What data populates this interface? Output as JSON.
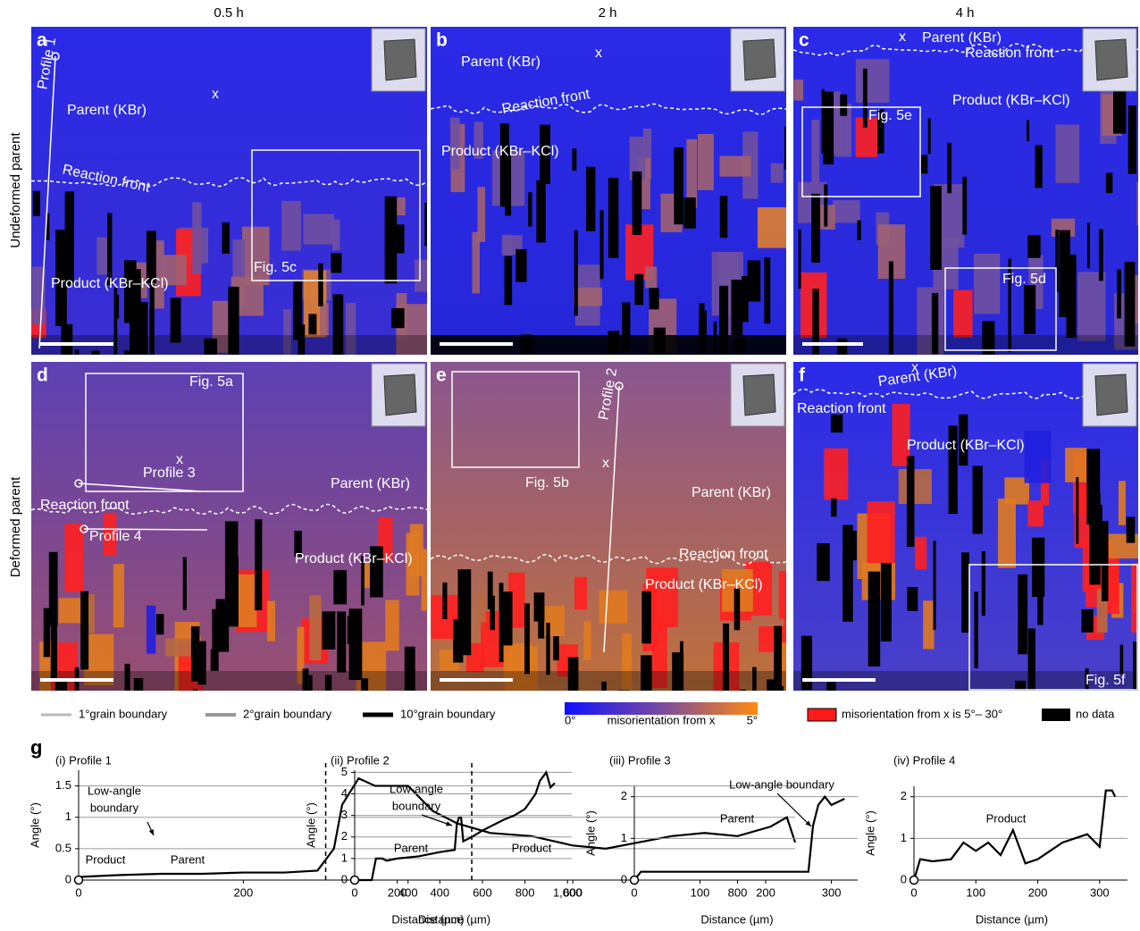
{
  "column_headers": [
    "0.5 h",
    "2 h",
    "4 h"
  ],
  "row_headers": [
    "Undeformed parent",
    "Deformed parent"
  ],
  "panels": [
    {
      "letter": "a",
      "labels": [
        "Profile 1",
        "Parent (KBr)",
        "x",
        "Reaction front",
        "Product (KBr–KCl)",
        "Fig. 5c"
      ]
    },
    {
      "letter": "b",
      "labels": [
        "Parent (KBr)",
        "x",
        "Reaction front",
        "Product (KBr–KCl)"
      ]
    },
    {
      "letter": "c",
      "labels": [
        "x",
        "Parent (KBr)",
        "Reaction front",
        "Product (KBr–KCl)",
        "Fig. 5e",
        "Fig. 5d"
      ]
    },
    {
      "letter": "d",
      "labels": [
        "Fig. 5a",
        "x",
        "Profile 3",
        "Reaction front",
        "Profile 4",
        "Parent (KBr)",
        "Product (KBr–KCl)"
      ]
    },
    {
      "letter": "e",
      "labels": [
        "Profile 2",
        "x",
        "Fig. 5b",
        "Parent (KBr)",
        "Reaction front",
        "Product (KBr–KCl)"
      ]
    },
    {
      "letter": "f",
      "labels": [
        "x",
        "Parent (KBr)",
        "Reaction front",
        "Product (KBr–KCl)",
        "Fig. 5f"
      ]
    }
  ],
  "legend": {
    "boundaries": [
      "1°grain boundary",
      "2°grain boundary",
      "10°grain boundary"
    ],
    "colorbar_min": "0°",
    "colorbar_label": "misorientation from x",
    "colorbar_max": "5°",
    "red_label": "misorientation from x is 5°– 30°",
    "black_label": "no data"
  },
  "section_letter": "g",
  "chart_data": [
    {
      "type": "line",
      "title": "(i) Profile 1",
      "x_label": "Distance (µm)",
      "y_label": "Angle (°)",
      "color": "#000000",
      "grid": true,
      "x": [
        0,
        50,
        100,
        150,
        200,
        250,
        290,
        310,
        320,
        340,
        360,
        400,
        430,
        460,
        500,
        550,
        600,
        640,
        680,
        720,
        760,
        800,
        840,
        860,
        870
      ],
      "values": [
        0.05,
        0.08,
        0.1,
        0.1,
        0.12,
        0.12,
        0.15,
        0.5,
        1.2,
        1.62,
        1.5,
        1.5,
        1.1,
        0.9,
        0.75,
        0.7,
        0.55,
        0.5,
        0.6,
        0.7,
        0.75,
        0.7,
        0.85,
        1.0,
        0.6
      ],
      "xlim": [
        0,
        870
      ],
      "ylim": [
        0,
        1.75
      ],
      "xticks": [
        0,
        200,
        400,
        600,
        800
      ],
      "yticks": [
        0,
        0.5,
        1,
        1.5
      ],
      "divider_x": 300,
      "annotations": [
        [
          "Low-angle",
          "boundary"
        ],
        [
          "Parent"
        ],
        [
          "Product"
        ]
      ]
    },
    {
      "type": "line",
      "title": "(ii) Profile 2",
      "x_label": "Distance (µm)",
      "y_label": "Angle (°)",
      "color": "#000000",
      "grid": true,
      "x": [
        0,
        80,
        100,
        130,
        150,
        200,
        300,
        400,
        470,
        480,
        490,
        500,
        510,
        550,
        600,
        700,
        750,
        800,
        850,
        870,
        900,
        920,
        940
      ],
      "values": [
        0,
        0,
        1,
        1,
        0.9,
        1,
        1.1,
        1.3,
        1.4,
        2.6,
        2.9,
        2.9,
        1.8,
        2.0,
        2.3,
        2.8,
        3.0,
        3.3,
        4.0,
        4.6,
        5.0,
        4.3,
        4.5
      ],
      "xlim": [
        0,
        1020
      ],
      "ylim": [
        0,
        5.1
      ],
      "xticks": [
        0,
        200,
        400,
        600,
        800,
        {
          "value": 1000,
          "label": "1,000"
        }
      ],
      "yticks": [
        0,
        1,
        2,
        3,
        4,
        5
      ],
      "divider_x": 550,
      "annotations": [
        [
          "Low-angle",
          "boundary"
        ],
        [
          "Parent"
        ],
        [
          "Product"
        ]
      ]
    },
    {
      "type": "line",
      "title": "(iii) Profile 3",
      "x_label": "Distance (µm)",
      "y_label": "Angle (°)",
      "color": "#000000",
      "grid": true,
      "x": [
        0,
        10,
        50,
        100,
        150,
        200,
        250,
        265,
        272,
        280,
        290,
        300,
        320
      ],
      "values": [
        0,
        0.2,
        0.2,
        0.2,
        0.2,
        0.2,
        0.2,
        0.2,
        1.3,
        1.8,
        2.0,
        1.8,
        1.95
      ],
      "xlim": [
        0,
        340
      ],
      "ylim": [
        0,
        2.25
      ],
      "xticks": [
        0,
        100,
        200,
        300
      ],
      "yticks": [
        0,
        1,
        2
      ],
      "annotations": [
        [
          "Low-angle boundary"
        ],
        [
          "Parent"
        ]
      ]
    },
    {
      "type": "line",
      "title": "(iv) Profile 4",
      "x_label": "Distance (µm)",
      "y_label": "Angle (°)",
      "color": "#000000",
      "grid": true,
      "x": [
        0,
        10,
        30,
        60,
        80,
        100,
        120,
        140,
        160,
        180,
        200,
        220,
        240,
        260,
        280,
        300,
        310,
        320,
        325
      ],
      "values": [
        0,
        0.5,
        0.45,
        0.5,
        0.9,
        0.7,
        0.9,
        0.6,
        1.2,
        0.4,
        0.5,
        0.7,
        0.9,
        1.0,
        1.1,
        0.8,
        2.15,
        2.15,
        2.0
      ],
      "xlim": [
        0,
        345
      ],
      "ylim": [
        0,
        2.25
      ],
      "xticks": [
        0,
        100,
        200,
        300
      ],
      "yticks": [
        0,
        1,
        2
      ],
      "annotations": [
        [
          "Product"
        ]
      ]
    }
  ]
}
